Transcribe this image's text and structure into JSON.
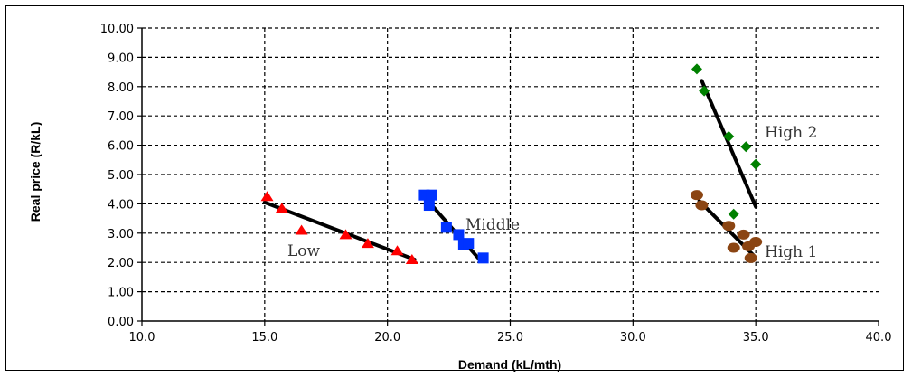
{
  "chart_data": {
    "type": "scatter",
    "xlabel": "Demand (kL/mth)",
    "ylabel": "Real price (R/kL)",
    "xlim": [
      10.0,
      40.0
    ],
    "ylim": [
      0.0,
      10.0
    ],
    "x_ticks": [
      "10.0",
      "15.0",
      "20.0",
      "25.0",
      "30.0",
      "35.0",
      "40.0"
    ],
    "y_ticks": [
      "0.00",
      "1.00",
      "2.00",
      "3.00",
      "4.00",
      "5.00",
      "6.00",
      "7.00",
      "8.00",
      "9.00",
      "10.00"
    ],
    "grid": true,
    "series": [
      {
        "name": "Low",
        "marker": "triangle",
        "color": "#ff0000",
        "x": [
          15.1,
          15.7,
          16.5,
          18.3,
          19.2,
          20.4,
          21.0
        ],
        "y": [
          4.25,
          3.85,
          3.1,
          2.95,
          2.65,
          2.4,
          2.1
        ],
        "trend": [
          [
            15.0,
            4.05
          ],
          [
            21.1,
            2.1
          ]
        ]
      },
      {
        "name": "Middle",
        "marker": "square",
        "color": "#0033ff",
        "x": [
          21.5,
          21.8,
          21.7,
          22.4,
          22.9,
          23.1,
          23.3,
          23.9
        ],
        "y": [
          4.3,
          4.3,
          3.95,
          3.2,
          2.95,
          2.6,
          2.65,
          2.15
        ],
        "trend": [
          [
            21.6,
            4.15
          ],
          [
            23.8,
            2.05
          ]
        ]
      },
      {
        "name": "High 2",
        "marker": "diamond",
        "color": "#008000",
        "x": [
          32.6,
          32.9,
          33.9,
          34.6,
          35.0,
          34.1
        ],
        "y": [
          8.6,
          7.85,
          6.3,
          5.95,
          5.35,
          3.65
        ],
        "trend": [
          [
            32.8,
            8.2
          ],
          [
            35.0,
            3.9
          ]
        ]
      },
      {
        "name": "High 1",
        "marker": "circle",
        "color": "#8b4513",
        "x": [
          32.6,
          32.8,
          33.9,
          34.1,
          34.5,
          34.7,
          34.8,
          35.0
        ],
        "y": [
          4.3,
          3.95,
          3.25,
          2.5,
          2.95,
          2.55,
          2.15,
          2.7
        ],
        "trend": [
          [
            32.7,
            4.1
          ],
          [
            34.9,
            2.25
          ]
        ]
      }
    ],
    "annotations": [
      "Low",
      "Middle",
      "High 2",
      "High 1"
    ]
  }
}
